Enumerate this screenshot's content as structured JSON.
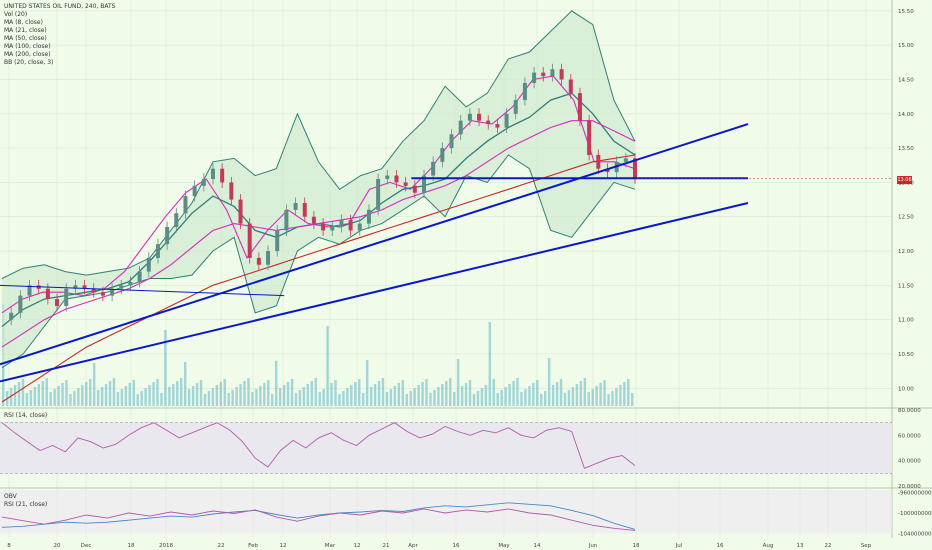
{
  "legend": {
    "title": "UNITED STATES OIL FUND, 240, BATS",
    "lines": [
      "Vol (20)",
      "MA (8, close)",
      "MA (21, close)",
      "MA (50, close)",
      "MA (100, close)",
      "MA (200, close)",
      "BB (20, close, 3)"
    ]
  },
  "rsi_label": "RSI (14, close)",
  "obv_label": "OBV",
  "obv_rsi_label": "RSI (21, close)",
  "last_price": "13.06",
  "colors": {
    "background": "#f1fbe9",
    "grid": "#d9e8d2",
    "candle_up": "#5b8c85",
    "candle_down": "#c2395a",
    "bollinger_fill": "#cfeacf",
    "bollinger_line": "#2f7f78",
    "ma_pink": "#d72ac0",
    "ma_red": "#c62828",
    "trendline": "#0a18c8",
    "volume": "#5eb6c9",
    "rsi": "#b25aa8",
    "obv": "#4a86c8"
  },
  "chart_data": {
    "type": "line",
    "ylim": [
      9.8,
      15.6
    ],
    "y_ticks": [
      "15.50",
      "15.00",
      "14.50",
      "14.00",
      "13.50",
      "13.00",
      "12.50",
      "12.00",
      "11.50",
      "11.00",
      "10.50",
      "10.00"
    ],
    "x_ticks": [
      "8",
      "20",
      "Dec",
      "18",
      "2018",
      "22",
      "Feb",
      "12",
      "Mar",
      "12",
      "21",
      "Apr",
      "16",
      "May",
      "14",
      "Jun",
      "18",
      "Jul",
      "16",
      "Aug",
      "13",
      "22",
      "Sep"
    ],
    "close_series": [
      11.0,
      11.1,
      11.35,
      11.5,
      11.45,
      11.3,
      11.2,
      11.45,
      11.5,
      11.45,
      11.4,
      11.35,
      11.45,
      11.5,
      11.55,
      11.7,
      11.9,
      12.1,
      12.35,
      12.55,
      12.8,
      12.95,
      13.05,
      13.2,
      13.0,
      12.75,
      12.4,
      11.9,
      11.8,
      12.0,
      12.3,
      12.6,
      12.7,
      12.5,
      12.4,
      12.3,
      12.35,
      12.45,
      12.3,
      12.4,
      12.6,
      13.05,
      13.1,
      13.0,
      12.95,
      12.85,
      13.1,
      13.3,
      13.5,
      13.7,
      13.9,
      14.0,
      13.9,
      13.85,
      13.8,
      14.0,
      14.2,
      14.45,
      14.6,
      14.55,
      14.65,
      14.5,
      14.3,
      13.9,
      13.4,
      13.2,
      13.15,
      13.3,
      13.35,
      13.06
    ],
    "bollinger": {
      "upper": [
        11.6,
        11.75,
        11.8,
        11.7,
        11.65,
        11.7,
        11.75,
        11.9,
        12.3,
        12.7,
        13.3,
        13.35,
        13.1,
        13.2,
        14.0,
        13.3,
        12.9,
        13.1,
        13.2,
        13.6,
        13.9,
        14.4,
        14.1,
        14.3,
        14.8,
        14.9,
        15.2,
        15.5,
        15.3,
        14.2,
        13.6
      ],
      "lower": [
        10.3,
        10.5,
        10.9,
        11.3,
        11.35,
        11.4,
        11.5,
        11.6,
        11.6,
        11.65,
        12.0,
        12.2,
        11.1,
        11.2,
        12.0,
        12.2,
        12.1,
        12.3,
        12.4,
        12.6,
        12.8,
        12.5,
        13.1,
        13.0,
        13.4,
        13.2,
        12.3,
        12.2,
        12.6,
        13.0,
        12.9
      ]
    },
    "moving_averages": [
      {
        "period": 8,
        "values": [
          11.1,
          11.3,
          11.4,
          11.4,
          11.35,
          11.45,
          11.7,
          12.1,
          12.5,
          12.85,
          13.05,
          12.6,
          11.9,
          12.3,
          12.6,
          12.4,
          12.35,
          12.4,
          12.9,
          13.0,
          12.9,
          13.2,
          13.6,
          13.9,
          13.85,
          14.1,
          14.5,
          14.55,
          14.2,
          13.3,
          13.3,
          13.2
        ]
      },
      {
        "period": 21,
        "values": [
          10.9,
          11.15,
          11.3,
          11.35,
          11.4,
          11.45,
          11.55,
          11.85,
          12.2,
          12.55,
          12.8,
          12.65,
          12.3,
          12.2,
          12.35,
          12.4,
          12.35,
          12.45,
          12.7,
          12.9,
          12.95,
          13.05,
          13.35,
          13.6,
          13.8,
          13.95,
          14.2,
          14.3,
          14.0,
          13.6,
          13.4
        ]
      },
      {
        "period": 50,
        "values": [
          10.6,
          10.8,
          11.0,
          11.15,
          11.25,
          11.35,
          11.45,
          11.6,
          11.8,
          12.05,
          12.3,
          12.4,
          12.35,
          12.3,
          12.35,
          12.4,
          12.45,
          12.5,
          12.6,
          12.75,
          12.85,
          12.95,
          13.1,
          13.3,
          13.5,
          13.65,
          13.8,
          13.9,
          13.9,
          13.75,
          13.6
        ]
      },
      {
        "period": 200,
        "values": [
          9.8,
          10.0,
          10.2,
          10.4,
          10.6,
          10.75,
          10.9,
          11.05,
          11.2,
          11.35,
          11.5,
          11.6,
          11.7,
          11.8,
          11.9,
          12.0,
          12.1,
          12.2,
          12.3,
          12.4,
          12.5,
          12.6,
          12.7,
          12.8,
          12.9,
          13.0,
          13.1,
          13.2,
          13.3,
          13.35,
          13.4
        ]
      }
    ],
    "trendlines": [
      {
        "from": [
          0,
          10.35
        ],
        "to": [
          1,
          13.85
        ]
      },
      {
        "from": [
          0,
          10.1
        ],
        "to": [
          1,
          12.7
        ]
      },
      {
        "from": [
          0.55,
          13.06
        ],
        "to": [
          1,
          13.06
        ]
      },
      {
        "from": [
          0,
          11.5
        ],
        "to": [
          0.38,
          11.35
        ]
      }
    ],
    "rsi": {
      "ylim": [
        20,
        80
      ],
      "y_ticks": [
        "80.0000",
        "60.0000",
        "40.0000",
        "20.0000"
      ],
      "values": [
        70,
        62,
        55,
        48,
        52,
        47,
        58,
        55,
        50,
        53,
        60,
        66,
        70,
        64,
        58,
        62,
        66,
        70,
        64,
        55,
        42,
        35,
        48,
        56,
        50,
        58,
        62,
        56,
        52,
        60,
        65,
        70,
        63,
        58,
        61,
        67,
        63,
        60,
        64,
        62,
        66,
        60,
        58,
        64,
        66,
        63,
        34,
        38,
        42,
        44,
        36
      ]
    },
    "obv": {
      "y_ticks": [
        "-960000000",
        "-1000000000",
        "-1040000000"
      ],
      "obv_values": [
        -1028,
        -1026,
        -1022,
        -1018,
        -1020,
        -1018,
        -1014,
        -1010,
        -1006,
        -1008,
        -1002,
        -998,
        -995,
        -1003,
        -1010,
        -1004,
        -1000,
        -998,
        -995,
        -997,
        -990,
        -986,
        -988,
        -984,
        -980,
        -983,
        -986,
        -995,
        -1005,
        -1020,
        -1032
      ],
      "rsi_values": [
        -1008,
        -1015,
        -1022,
        -1014,
        -1004,
        -1010,
        -1000,
        -1006,
        -998,
        -1004,
        -996,
        -1001,
        -994,
        -1008,
        -1016,
        -1006,
        -1000,
        -1004,
        -996,
        -1000,
        -992,
        -1000,
        -994,
        -998,
        -992,
        -1000,
        -1004,
        -1014,
        -1024,
        -1030,
        -1034
      ]
    }
  }
}
